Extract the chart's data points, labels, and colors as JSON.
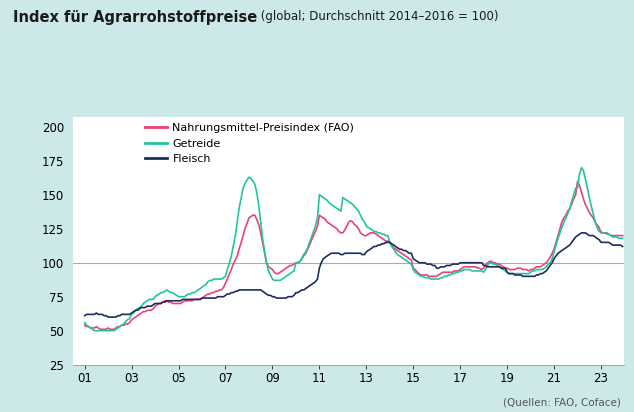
{
  "title_bold": "Index für Agrarrohstoffpreise",
  "title_regular": " (global; Durchschnitt 2014–2016 = 100)",
  "source": "(Quellen: FAO, Coface)",
  "bg_color": "#cce8e8",
  "plot_bg": "#ffffff",
  "ref_line_y": 100,
  "ref_line_color": "#aaaaaa",
  "ylim": [
    25,
    207
  ],
  "yticks": [
    25,
    50,
    75,
    100,
    125,
    150,
    175,
    200
  ],
  "xticks": [
    2001,
    2003,
    2005,
    2007,
    2009,
    2011,
    2013,
    2015,
    2017,
    2019,
    2021,
    2023
  ],
  "xlabels": [
    "01",
    "03",
    "05",
    "07",
    "09",
    "11",
    "13",
    "15",
    "17",
    "19",
    "21",
    "23"
  ],
  "xlim_start": 2000.5,
  "xlim_end": 2024.0,
  "line_fao_color": "#e8427a",
  "line_grain_color": "#22c4a0",
  "line_meat_color": "#1c2d5e",
  "legend_labels": [
    "Nahrungsmittel-Preisindex (FAO)",
    "Getreide",
    "Fleisch"
  ],
  "fao_x": [
    2001.0,
    2001.08,
    2001.17,
    2001.25,
    2001.33,
    2001.42,
    2001.5,
    2001.58,
    2001.67,
    2001.75,
    2001.83,
    2001.92,
    2002.0,
    2002.08,
    2002.17,
    2002.25,
    2002.33,
    2002.42,
    2002.5,
    2002.58,
    2002.67,
    2002.75,
    2002.83,
    2002.92,
    2003.0,
    2003.08,
    2003.17,
    2003.25,
    2003.33,
    2003.42,
    2003.5,
    2003.58,
    2003.67,
    2003.75,
    2003.83,
    2003.92,
    2004.0,
    2004.08,
    2004.17,
    2004.25,
    2004.33,
    2004.42,
    2004.5,
    2004.58,
    2004.67,
    2004.75,
    2004.83,
    2004.92,
    2005.0,
    2005.08,
    2005.17,
    2005.25,
    2005.33,
    2005.42,
    2005.5,
    2005.58,
    2005.67,
    2005.75,
    2005.83,
    2005.92,
    2006.0,
    2006.08,
    2006.17,
    2006.25,
    2006.33,
    2006.42,
    2006.5,
    2006.58,
    2006.67,
    2006.75,
    2006.83,
    2006.92,
    2007.0,
    2007.08,
    2007.17,
    2007.25,
    2007.33,
    2007.42,
    2007.5,
    2007.58,
    2007.67,
    2007.75,
    2007.83,
    2007.92,
    2008.0,
    2008.08,
    2008.17,
    2008.25,
    2008.33,
    2008.42,
    2008.5,
    2008.58,
    2008.67,
    2008.75,
    2008.83,
    2008.92,
    2009.0,
    2009.08,
    2009.17,
    2009.25,
    2009.33,
    2009.42,
    2009.5,
    2009.58,
    2009.67,
    2009.75,
    2009.83,
    2009.92,
    2010.0,
    2010.08,
    2010.17,
    2010.25,
    2010.33,
    2010.42,
    2010.5,
    2010.58,
    2010.67,
    2010.75,
    2010.83,
    2010.92,
    2011.0,
    2011.08,
    2011.17,
    2011.25,
    2011.33,
    2011.42,
    2011.5,
    2011.58,
    2011.67,
    2011.75,
    2011.83,
    2011.92,
    2012.0,
    2012.08,
    2012.17,
    2012.25,
    2012.33,
    2012.42,
    2012.5,
    2012.58,
    2012.67,
    2012.75,
    2012.83,
    2012.92,
    2013.0,
    2013.08,
    2013.17,
    2013.25,
    2013.33,
    2013.42,
    2013.5,
    2013.58,
    2013.67,
    2013.75,
    2013.83,
    2013.92,
    2014.0,
    2014.08,
    2014.17,
    2014.25,
    2014.33,
    2014.42,
    2014.5,
    2014.58,
    2014.67,
    2014.75,
    2014.83,
    2014.92,
    2015.0,
    2015.08,
    2015.17,
    2015.25,
    2015.33,
    2015.42,
    2015.5,
    2015.58,
    2015.67,
    2015.75,
    2015.83,
    2015.92,
    2016.0,
    2016.08,
    2016.17,
    2016.25,
    2016.33,
    2016.42,
    2016.5,
    2016.58,
    2016.67,
    2016.75,
    2016.83,
    2016.92,
    2017.0,
    2017.08,
    2017.17,
    2017.25,
    2017.33,
    2017.42,
    2017.5,
    2017.58,
    2017.67,
    2017.75,
    2017.83,
    2017.92,
    2018.0,
    2018.08,
    2018.17,
    2018.25,
    2018.33,
    2018.42,
    2018.5,
    2018.58,
    2018.67,
    2018.75,
    2018.83,
    2018.92,
    2019.0,
    2019.08,
    2019.17,
    2019.25,
    2019.33,
    2019.42,
    2019.5,
    2019.58,
    2019.67,
    2019.75,
    2019.83,
    2019.92,
    2020.0,
    2020.08,
    2020.17,
    2020.25,
    2020.33,
    2020.42,
    2020.5,
    2020.58,
    2020.67,
    2020.75,
    2020.83,
    2020.92,
    2021.0,
    2021.08,
    2021.17,
    2021.25,
    2021.33,
    2021.42,
    2021.5,
    2021.58,
    2021.67,
    2021.75,
    2021.83,
    2021.92,
    2022.0,
    2022.08,
    2022.17,
    2022.25,
    2022.33,
    2022.42,
    2022.5,
    2022.58,
    2022.67,
    2022.75,
    2022.83,
    2022.92,
    2023.0,
    2023.08,
    2023.17,
    2023.25,
    2023.33,
    2023.42,
    2023.5,
    2023.58,
    2023.67,
    2023.75,
    2023.83,
    2023.92
  ],
  "fao_y": [
    54,
    53,
    53,
    52,
    52,
    52,
    53,
    52,
    51,
    51,
    51,
    51,
    52,
    51,
    51,
    51,
    52,
    53,
    53,
    54,
    54,
    55,
    55,
    56,
    58,
    59,
    60,
    61,
    62,
    63,
    64,
    64,
    65,
    65,
    65,
    66,
    68,
    69,
    70,
    70,
    71,
    72,
    72,
    71,
    71,
    70,
    70,
    70,
    70,
    70,
    71,
    72,
    72,
    72,
    72,
    72,
    73,
    73,
    73,
    73,
    74,
    75,
    76,
    77,
    77,
    78,
    78,
    79,
    79,
    80,
    80,
    82,
    85,
    88,
    92,
    95,
    99,
    102,
    105,
    110,
    115,
    120,
    125,
    129,
    133,
    134,
    135,
    135,
    132,
    128,
    122,
    115,
    107,
    100,
    97,
    96,
    95,
    93,
    92,
    92,
    93,
    94,
    95,
    96,
    97,
    98,
    98,
    99,
    100,
    100,
    101,
    103,
    105,
    107,
    110,
    113,
    117,
    120,
    123,
    127,
    135,
    134,
    133,
    132,
    130,
    129,
    128,
    127,
    126,
    125,
    123,
    122,
    122,
    124,
    127,
    130,
    131,
    130,
    128,
    127,
    125,
    122,
    121,
    120,
    120,
    121,
    122,
    122,
    122,
    121,
    120,
    119,
    118,
    117,
    116,
    116,
    115,
    113,
    111,
    110,
    109,
    108,
    107,
    106,
    105,
    104,
    103,
    102,
    96,
    95,
    93,
    92,
    91,
    91,
    91,
    91,
    90,
    90,
    90,
    90,
    90,
    91,
    92,
    93,
    93,
    93,
    93,
    93,
    93,
    94,
    94,
    94,
    95,
    96,
    97,
    97,
    97,
    97,
    97,
    97,
    97,
    96,
    96,
    95,
    96,
    98,
    100,
    101,
    101,
    100,
    100,
    99,
    99,
    98,
    97,
    96,
    96,
    95,
    95,
    95,
    95,
    96,
    96,
    96,
    95,
    95,
    95,
    94,
    95,
    95,
    96,
    97,
    97,
    97,
    98,
    99,
    100,
    102,
    104,
    107,
    110,
    115,
    120,
    125,
    130,
    133,
    135,
    138,
    140,
    143,
    147,
    150,
    160,
    157,
    152,
    147,
    143,
    140,
    137,
    135,
    133,
    130,
    128,
    126,
    122,
    122,
    122,
    122,
    121,
    120,
    120,
    120,
    120,
    120,
    120,
    120
  ],
  "grain_x": [
    2001.0,
    2001.08,
    2001.17,
    2001.25,
    2001.33,
    2001.42,
    2001.5,
    2001.58,
    2001.67,
    2001.75,
    2001.83,
    2001.92,
    2002.0,
    2002.08,
    2002.17,
    2002.25,
    2002.33,
    2002.42,
    2002.5,
    2002.58,
    2002.67,
    2002.75,
    2002.83,
    2002.92,
    2003.0,
    2003.08,
    2003.17,
    2003.25,
    2003.33,
    2003.42,
    2003.5,
    2003.58,
    2003.67,
    2003.75,
    2003.83,
    2003.92,
    2004.0,
    2004.08,
    2004.17,
    2004.25,
    2004.33,
    2004.42,
    2004.5,
    2004.58,
    2004.67,
    2004.75,
    2004.83,
    2004.92,
    2005.0,
    2005.08,
    2005.17,
    2005.25,
    2005.33,
    2005.42,
    2005.5,
    2005.58,
    2005.67,
    2005.75,
    2005.83,
    2005.92,
    2006.0,
    2006.08,
    2006.17,
    2006.25,
    2006.33,
    2006.42,
    2006.5,
    2006.58,
    2006.67,
    2006.75,
    2006.83,
    2006.92,
    2007.0,
    2007.08,
    2007.17,
    2007.25,
    2007.33,
    2007.42,
    2007.5,
    2007.58,
    2007.67,
    2007.75,
    2007.83,
    2007.92,
    2008.0,
    2008.08,
    2008.17,
    2008.25,
    2008.33,
    2008.42,
    2008.5,
    2008.58,
    2008.67,
    2008.75,
    2008.83,
    2008.92,
    2009.0,
    2009.08,
    2009.17,
    2009.25,
    2009.33,
    2009.42,
    2009.5,
    2009.58,
    2009.67,
    2009.75,
    2009.83,
    2009.92,
    2010.0,
    2010.08,
    2010.17,
    2010.25,
    2010.33,
    2010.42,
    2010.5,
    2010.58,
    2010.67,
    2010.75,
    2010.83,
    2010.92,
    2011.0,
    2011.08,
    2011.17,
    2011.25,
    2011.33,
    2011.42,
    2011.5,
    2011.58,
    2011.67,
    2011.75,
    2011.83,
    2011.92,
    2012.0,
    2012.08,
    2012.17,
    2012.25,
    2012.33,
    2012.42,
    2012.5,
    2012.58,
    2012.67,
    2012.75,
    2012.83,
    2012.92,
    2013.0,
    2013.08,
    2013.17,
    2013.25,
    2013.33,
    2013.42,
    2013.5,
    2013.58,
    2013.67,
    2013.75,
    2013.83,
    2013.92,
    2014.0,
    2014.08,
    2014.17,
    2014.25,
    2014.33,
    2014.42,
    2014.5,
    2014.58,
    2014.67,
    2014.75,
    2014.83,
    2014.92,
    2015.0,
    2015.08,
    2015.17,
    2015.25,
    2015.33,
    2015.42,
    2015.5,
    2015.58,
    2015.67,
    2015.75,
    2015.83,
    2015.92,
    2016.0,
    2016.08,
    2016.17,
    2016.25,
    2016.33,
    2016.42,
    2016.5,
    2016.58,
    2016.67,
    2016.75,
    2016.83,
    2016.92,
    2017.0,
    2017.08,
    2017.17,
    2017.25,
    2017.33,
    2017.42,
    2017.5,
    2017.58,
    2017.67,
    2017.75,
    2017.83,
    2017.92,
    2018.0,
    2018.08,
    2018.17,
    2018.25,
    2018.33,
    2018.42,
    2018.5,
    2018.58,
    2018.67,
    2018.75,
    2018.83,
    2018.92,
    2019.0,
    2019.08,
    2019.17,
    2019.25,
    2019.33,
    2019.42,
    2019.5,
    2019.58,
    2019.67,
    2019.75,
    2019.83,
    2019.92,
    2020.0,
    2020.08,
    2020.17,
    2020.25,
    2020.33,
    2020.42,
    2020.5,
    2020.58,
    2020.67,
    2020.75,
    2020.83,
    2020.92,
    2021.0,
    2021.08,
    2021.17,
    2021.25,
    2021.33,
    2021.42,
    2021.5,
    2021.58,
    2021.67,
    2021.75,
    2021.83,
    2021.92,
    2022.0,
    2022.08,
    2022.17,
    2022.25,
    2022.33,
    2022.42,
    2022.5,
    2022.58,
    2022.67,
    2022.75,
    2022.83,
    2022.92,
    2023.0,
    2023.08,
    2023.17,
    2023.25,
    2023.33,
    2023.42,
    2023.5,
    2023.58,
    2023.67,
    2023.75,
    2023.83,
    2023.92
  ],
  "grain_y": [
    56,
    54,
    53,
    52,
    51,
    50,
    50,
    50,
    50,
    50,
    50,
    50,
    50,
    50,
    50,
    50,
    51,
    52,
    53,
    54,
    55,
    57,
    58,
    59,
    62,
    63,
    65,
    66,
    67,
    68,
    70,
    71,
    72,
    73,
    73,
    73,
    75,
    76,
    77,
    78,
    78,
    79,
    80,
    79,
    78,
    78,
    77,
    76,
    75,
    75,
    75,
    75,
    76,
    77,
    77,
    78,
    78,
    79,
    80,
    81,
    82,
    83,
    84,
    86,
    87,
    87,
    88,
    88,
    88,
    88,
    88,
    89,
    90,
    95,
    100,
    105,
    112,
    120,
    130,
    140,
    148,
    155,
    158,
    161,
    163,
    162,
    160,
    158,
    152,
    142,
    130,
    118,
    108,
    100,
    94,
    91,
    88,
    87,
    87,
    87,
    87,
    88,
    89,
    90,
    91,
    92,
    93,
    94,
    100,
    100,
    101,
    103,
    106,
    108,
    111,
    115,
    119,
    123,
    127,
    133,
    150,
    149,
    148,
    147,
    146,
    144,
    143,
    142,
    141,
    140,
    139,
    138,
    148,
    147,
    146,
    145,
    144,
    143,
    141,
    140,
    138,
    135,
    132,
    130,
    127,
    126,
    125,
    124,
    123,
    123,
    122,
    122,
    121,
    121,
    120,
    120,
    115,
    112,
    110,
    108,
    106,
    105,
    104,
    103,
    102,
    101,
    100,
    99,
    95,
    93,
    92,
    91,
    90,
    90,
    89,
    89,
    89,
    88,
    88,
    88,
    88,
    88,
    89,
    89,
    90,
    90,
    91,
    91,
    92,
    92,
    93,
    93,
    94,
    94,
    95,
    95,
    95,
    95,
    94,
    94,
    94,
    94,
    94,
    94,
    93,
    95,
    98,
    100,
    100,
    99,
    99,
    98,
    97,
    96,
    95,
    94,
    93,
    92,
    92,
    92,
    92,
    92,
    92,
    92,
    92,
    92,
    92,
    92,
    93,
    94,
    94,
    95,
    95,
    95,
    95,
    96,
    97,
    99,
    100,
    103,
    108,
    113,
    118,
    122,
    126,
    130,
    133,
    136,
    140,
    145,
    150,
    155,
    155,
    165,
    170,
    168,
    162,
    155,
    148,
    142,
    136,
    130,
    126,
    123,
    123,
    122,
    122,
    121,
    121,
    120,
    119,
    119,
    119,
    118,
    118,
    118
  ],
  "meat_x": [
    2001.0,
    2001.08,
    2001.17,
    2001.25,
    2001.33,
    2001.42,
    2001.5,
    2001.58,
    2001.67,
    2001.75,
    2001.83,
    2001.92,
    2002.0,
    2002.08,
    2002.17,
    2002.25,
    2002.33,
    2002.42,
    2002.5,
    2002.58,
    2002.67,
    2002.75,
    2002.83,
    2002.92,
    2003.0,
    2003.08,
    2003.17,
    2003.25,
    2003.33,
    2003.42,
    2003.5,
    2003.58,
    2003.67,
    2003.75,
    2003.83,
    2003.92,
    2004.0,
    2004.08,
    2004.17,
    2004.25,
    2004.33,
    2004.42,
    2004.5,
    2004.58,
    2004.67,
    2004.75,
    2004.83,
    2004.92,
    2005.0,
    2005.08,
    2005.17,
    2005.25,
    2005.33,
    2005.42,
    2005.5,
    2005.58,
    2005.67,
    2005.75,
    2005.83,
    2005.92,
    2006.0,
    2006.08,
    2006.17,
    2006.25,
    2006.33,
    2006.42,
    2006.5,
    2006.58,
    2006.67,
    2006.75,
    2006.83,
    2006.92,
    2007.0,
    2007.08,
    2007.17,
    2007.25,
    2007.33,
    2007.42,
    2007.5,
    2007.58,
    2007.67,
    2007.75,
    2007.83,
    2007.92,
    2008.0,
    2008.08,
    2008.17,
    2008.25,
    2008.33,
    2008.42,
    2008.5,
    2008.58,
    2008.67,
    2008.75,
    2008.83,
    2008.92,
    2009.0,
    2009.08,
    2009.17,
    2009.25,
    2009.33,
    2009.42,
    2009.5,
    2009.58,
    2009.67,
    2009.75,
    2009.83,
    2009.92,
    2010.0,
    2010.08,
    2010.17,
    2010.25,
    2010.33,
    2010.42,
    2010.5,
    2010.58,
    2010.67,
    2010.75,
    2010.83,
    2010.92,
    2011.0,
    2011.08,
    2011.17,
    2011.25,
    2011.33,
    2011.42,
    2011.5,
    2011.58,
    2011.67,
    2011.75,
    2011.83,
    2011.92,
    2012.0,
    2012.08,
    2012.17,
    2012.25,
    2012.33,
    2012.42,
    2012.5,
    2012.58,
    2012.67,
    2012.75,
    2012.83,
    2012.92,
    2013.0,
    2013.08,
    2013.17,
    2013.25,
    2013.33,
    2013.42,
    2013.5,
    2013.58,
    2013.67,
    2013.75,
    2013.83,
    2013.92,
    2014.0,
    2014.08,
    2014.17,
    2014.25,
    2014.33,
    2014.42,
    2014.5,
    2014.58,
    2014.67,
    2014.75,
    2014.83,
    2014.92,
    2015.0,
    2015.08,
    2015.17,
    2015.25,
    2015.33,
    2015.42,
    2015.5,
    2015.58,
    2015.67,
    2015.75,
    2015.83,
    2015.92,
    2016.0,
    2016.08,
    2016.17,
    2016.25,
    2016.33,
    2016.42,
    2016.5,
    2016.58,
    2016.67,
    2016.75,
    2016.83,
    2016.92,
    2017.0,
    2017.08,
    2017.17,
    2017.25,
    2017.33,
    2017.42,
    2017.5,
    2017.58,
    2017.67,
    2017.75,
    2017.83,
    2017.92,
    2018.0,
    2018.08,
    2018.17,
    2018.25,
    2018.33,
    2018.42,
    2018.5,
    2018.58,
    2018.67,
    2018.75,
    2018.83,
    2018.92,
    2019.0,
    2019.08,
    2019.17,
    2019.25,
    2019.33,
    2019.42,
    2019.5,
    2019.58,
    2019.67,
    2019.75,
    2019.83,
    2019.92,
    2020.0,
    2020.08,
    2020.17,
    2020.25,
    2020.33,
    2020.42,
    2020.5,
    2020.58,
    2020.67,
    2020.75,
    2020.83,
    2020.92,
    2021.0,
    2021.08,
    2021.17,
    2021.25,
    2021.33,
    2021.42,
    2021.5,
    2021.58,
    2021.67,
    2021.75,
    2021.83,
    2021.92,
    2022.0,
    2022.08,
    2022.17,
    2022.25,
    2022.33,
    2022.42,
    2022.5,
    2022.58,
    2022.67,
    2022.75,
    2022.83,
    2022.92,
    2023.0,
    2023.08,
    2023.17,
    2023.25,
    2023.33,
    2023.42,
    2023.5,
    2023.58,
    2023.67,
    2023.75,
    2023.83,
    2023.92
  ],
  "meat_y": [
    61,
    62,
    62,
    62,
    62,
    62,
    63,
    62,
    62,
    62,
    61,
    61,
    60,
    60,
    60,
    60,
    60,
    61,
    61,
    62,
    62,
    62,
    62,
    62,
    63,
    64,
    65,
    65,
    66,
    67,
    67,
    67,
    68,
    68,
    68,
    69,
    70,
    70,
    70,
    70,
    71,
    71,
    72,
    72,
    72,
    72,
    72,
    72,
    72,
    72,
    73,
    73,
    73,
    73,
    73,
    73,
    73,
    73,
    73,
    73,
    74,
    74,
    74,
    74,
    74,
    74,
    74,
    74,
    75,
    75,
    75,
    75,
    76,
    77,
    77,
    78,
    78,
    79,
    79,
    80,
    80,
    80,
    80,
    80,
    80,
    80,
    80,
    80,
    80,
    80,
    80,
    79,
    78,
    77,
    76,
    76,
    75,
    75,
    74,
    74,
    74,
    74,
    74,
    74,
    75,
    75,
    75,
    76,
    78,
    78,
    79,
    80,
    80,
    81,
    82,
    83,
    84,
    85,
    86,
    88,
    96,
    100,
    103,
    104,
    105,
    106,
    107,
    107,
    107,
    107,
    107,
    106,
    106,
    107,
    107,
    107,
    107,
    107,
    107,
    107,
    107,
    107,
    106,
    106,
    108,
    109,
    110,
    111,
    112,
    112,
    113,
    113,
    114,
    114,
    115,
    115,
    115,
    114,
    113,
    112,
    111,
    110,
    110,
    109,
    109,
    108,
    107,
    107,
    103,
    102,
    101,
    100,
    100,
    100,
    100,
    99,
    99,
    99,
    98,
    98,
    96,
    96,
    97,
    97,
    97,
    98,
    98,
    98,
    99,
    99,
    99,
    99,
    100,
    100,
    100,
    100,
    100,
    100,
    100,
    100,
    100,
    100,
    100,
    100,
    98,
    98,
    97,
    97,
    97,
    97,
    97,
    97,
    97,
    96,
    96,
    96,
    93,
    92,
    92,
    92,
    91,
    91,
    91,
    91,
    90,
    90,
    90,
    90,
    90,
    90,
    90,
    91,
    91,
    92,
    92,
    93,
    94,
    96,
    98,
    100,
    103,
    105,
    107,
    108,
    109,
    110,
    111,
    112,
    113,
    115,
    117,
    119,
    120,
    121,
    122,
    122,
    122,
    121,
    120,
    120,
    120,
    119,
    118,
    117,
    115,
    115,
    115,
    115,
    115,
    114,
    113,
    113,
    113,
    113,
    113,
    112
  ]
}
